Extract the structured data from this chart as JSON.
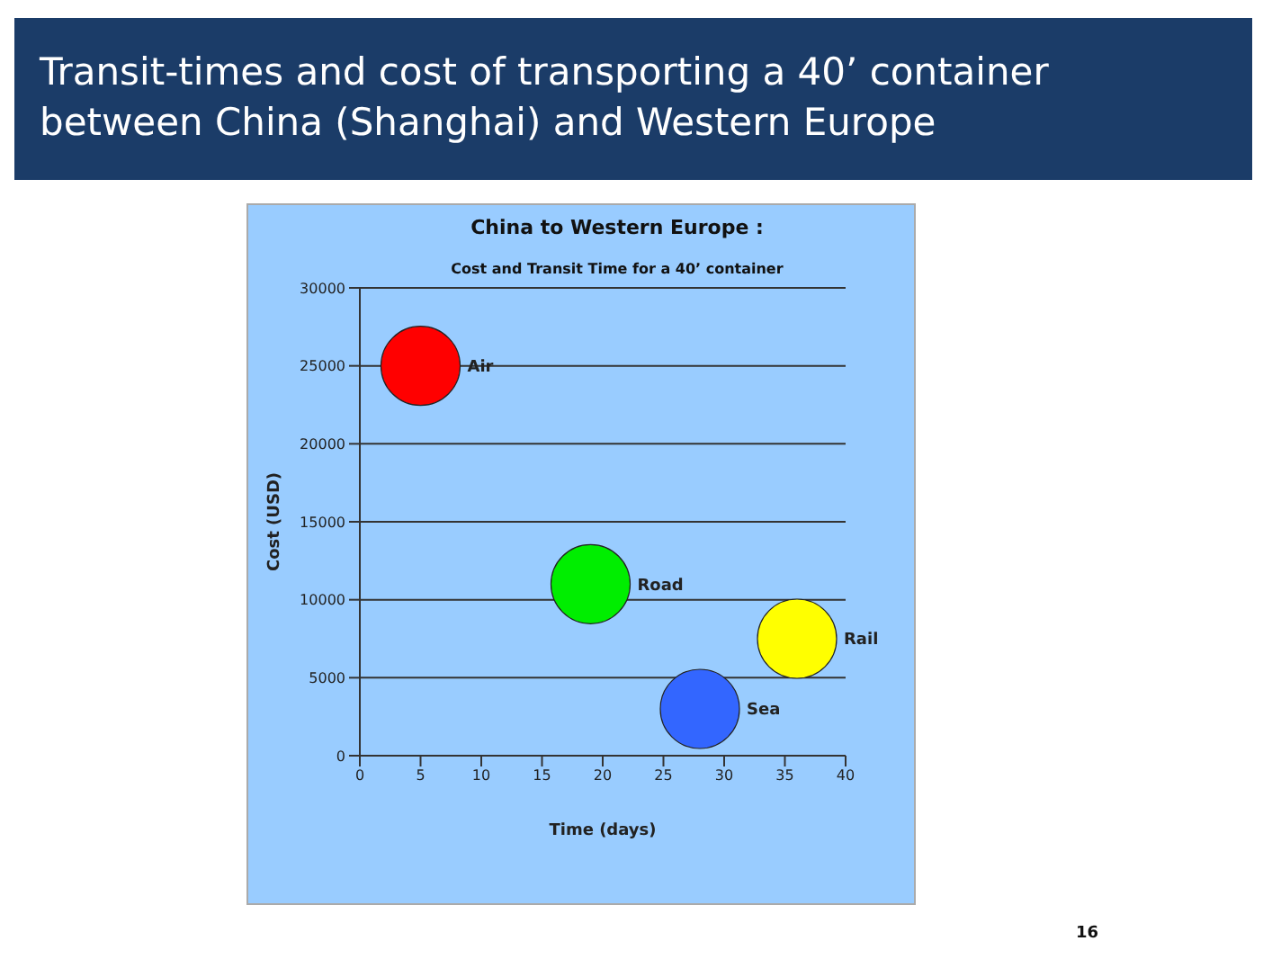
{
  "chart_data": {
    "type": "bubble",
    "title": "Transit-times and cost of transporting a 40’ container\nbetween China (Shanghai) and Western Europe",
    "subtitle": "China to Western Europe :",
    "xlabel": "Time (days)",
    "ylabel": "Cost (USD)",
    "annotations": [
      "Cost and Transit Time for a 40’ container",
      "16"
    ],
    "series": [
      {
        "name": "Air",
        "color": "#ff0000",
        "x": [
          5
        ],
        "values": [
          25000
        ],
        "sizes": [
          1
        ]
      },
      {
        "name": "Road",
        "color": "#00ee00",
        "x": [
          19
        ],
        "values": [
          11000
        ],
        "sizes": [
          1
        ]
      },
      {
        "name": "Rail",
        "color": "#ffff00",
        "x": [
          36
        ],
        "values": [
          7500
        ],
        "sizes": [
          1
        ]
      },
      {
        "name": "Sea",
        "color": "#3366ff",
        "x": [
          28
        ],
        "values": [
          3000
        ],
        "sizes": [
          1
        ]
      }
    ],
    "xlim": [
      0,
      40
    ],
    "xticks": [
      0,
      5,
      10,
      15,
      20,
      25,
      30,
      35,
      40
    ],
    "ylim": [
      0,
      30000
    ],
    "yticks": [
      0,
      5000,
      10000,
      15000,
      20000,
      25000,
      30000
    ],
    "grid": "y"
  }
}
